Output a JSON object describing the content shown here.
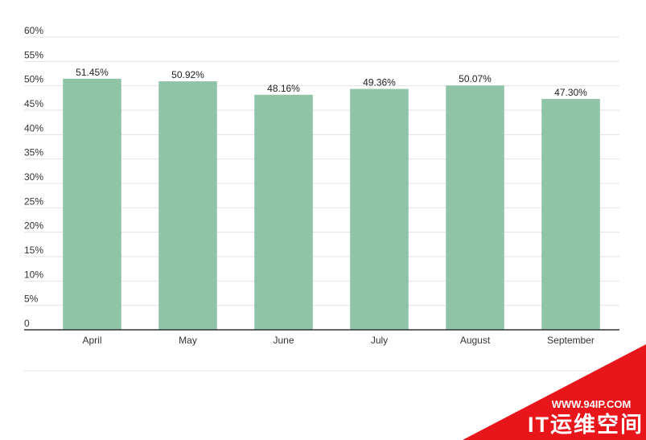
{
  "chart_data": {
    "type": "bar",
    "categories": [
      "April",
      "May",
      "June",
      "July",
      "August",
      "September"
    ],
    "values": [
      51.45,
      50.92,
      48.16,
      49.36,
      50.07,
      47.3
    ],
    "value_labels": [
      "51.45%",
      "50.92%",
      "48.16%",
      "49.36%",
      "50.07%",
      "47.30%"
    ],
    "color": "#8fc4a7",
    "ylim": [
      0,
      60
    ],
    "yticks": [
      0,
      {
        "value": 5,
        "label": "5%"
      },
      {
        "value": 10,
        "label": "10%"
      },
      {
        "value": 15,
        "label": "15%"
      },
      {
        "value": 20,
        "label": "20%"
      },
      {
        "value": 25,
        "label": "25%"
      },
      {
        "value": 30,
        "label": "30%"
      },
      {
        "value": 35,
        "label": "35%"
      },
      {
        "value": 40,
        "label": "40%"
      },
      {
        "value": 45,
        "label": "45%"
      },
      {
        "value": 50,
        "label": "50%"
      },
      {
        "value": 55,
        "label": "55%"
      },
      {
        "value": 60,
        "label": "60%"
      }
    ],
    "grid": true
  },
  "watermark": {
    "url": "WWW.94IP.COM",
    "name": "IT运维空间"
  }
}
